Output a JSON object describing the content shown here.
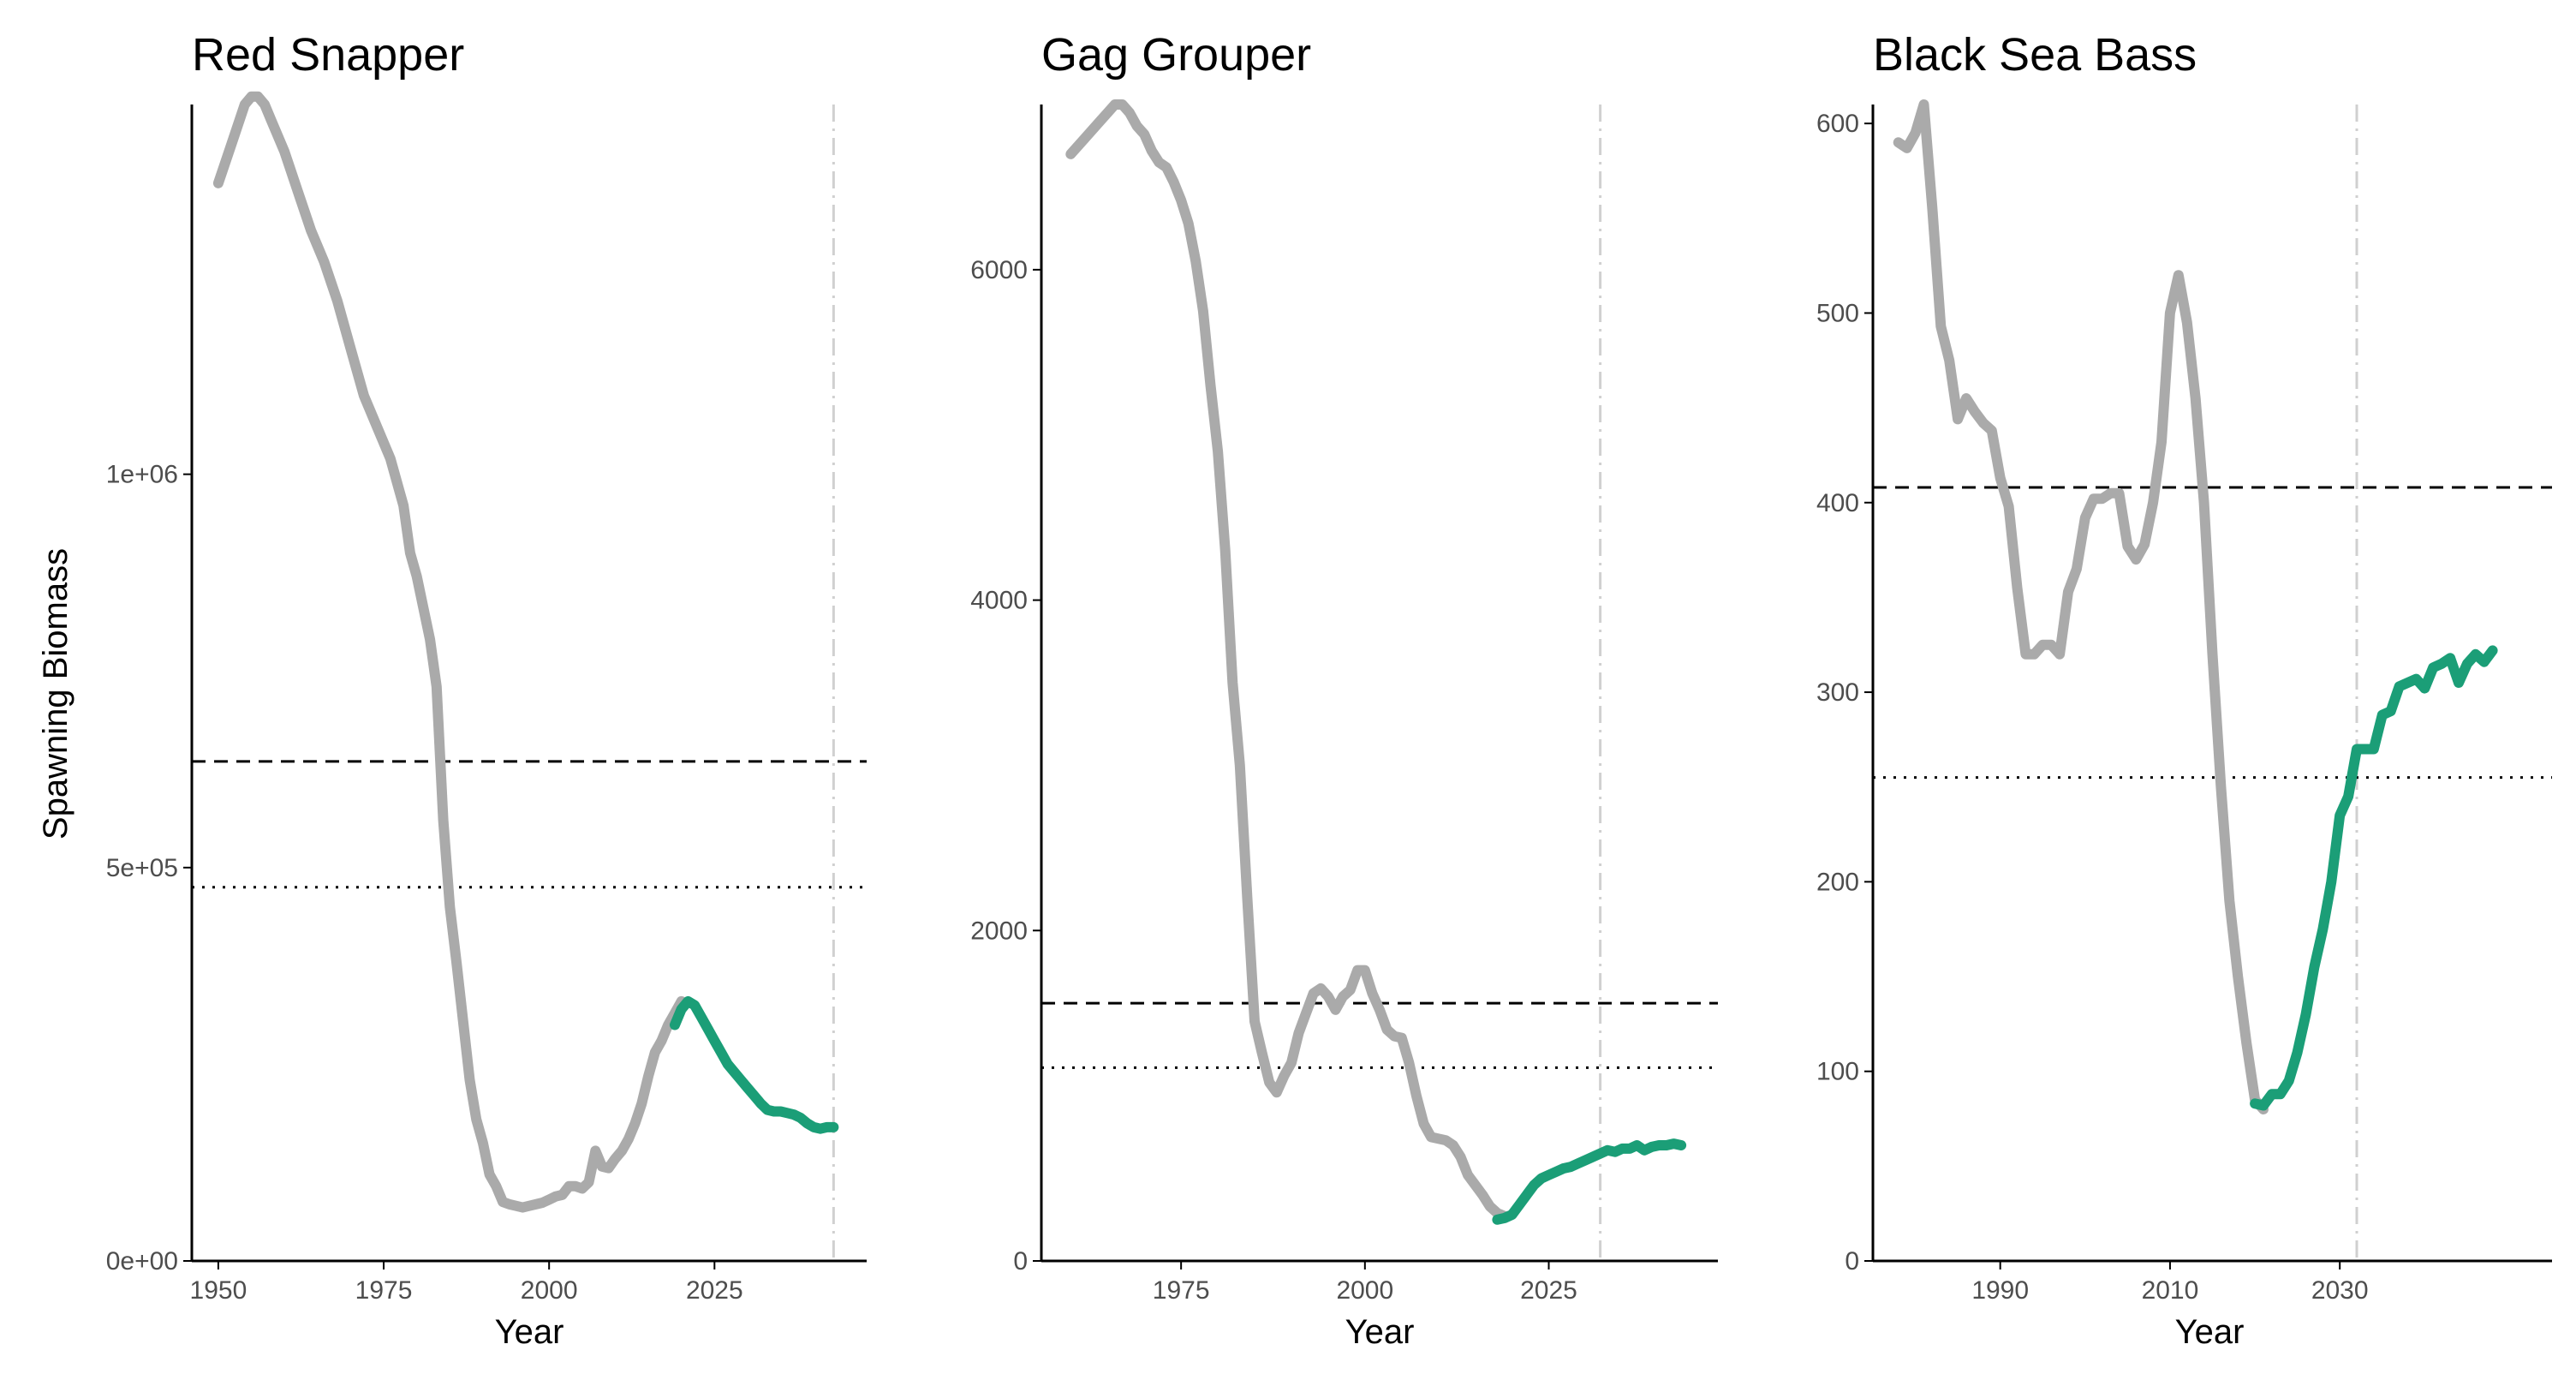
{
  "chart_data": [
    {
      "type": "line",
      "title": "Red Snapper",
      "xlabel": "Year",
      "ylabel": "Spawning Biomass",
      "xlim": [
        1946,
        2048
      ],
      "ylim": [
        0,
        1470000
      ],
      "xticks": [
        1950,
        1975,
        2000,
        2025
      ],
      "xtick_labels": [
        "1950",
        "1975",
        "2000",
        "2025"
      ],
      "yticks": [
        0,
        500000,
        1000000
      ],
      "ytick_labels": [
        "0e+00",
        "5e+05",
        "1e+06"
      ],
      "ref_lines": {
        "dashed": 635000,
        "dotted": 475000,
        "vertical": 2043
      },
      "grid": false,
      "series": [
        {
          "role": "historical",
          "color": "#aaaaaa",
          "x": [
            1950,
            1952,
            1954,
            1955,
            1956,
            1957,
            1958,
            1960,
            1962,
            1964,
            1966,
            1968,
            1970,
            1972,
            1974,
            1976,
            1978,
            1979,
            1980,
            1981,
            1982,
            1983,
            1984,
            1985,
            1986,
            1988,
            1989,
            1990,
            1991,
            1992,
            1993,
            1994,
            1995,
            1996,
            1997,
            1998,
            1999,
            2000,
            2001,
            2002,
            2003,
            2004,
            2005,
            2006,
            2007,
            2008,
            2009,
            2010,
            2011,
            2012,
            2013,
            2014,
            2015,
            2016,
            2017,
            2018,
            2019,
            2020
          ],
          "y": [
            1370000,
            1420000,
            1470000,
            1480000,
            1480000,
            1470000,
            1450000,
            1410000,
            1360000,
            1310000,
            1270000,
            1220000,
            1160000,
            1100000,
            1060000,
            1020000,
            960000,
            900000,
            870000,
            830000,
            790000,
            730000,
            560000,
            450000,
            380000,
            230000,
            180000,
            150000,
            110000,
            95000,
            75000,
            72000,
            70000,
            68000,
            70000,
            72000,
            74000,
            78000,
            82000,
            84000,
            95000,
            95000,
            92000,
            100000,
            140000,
            120000,
            118000,
            130000,
            140000,
            155000,
            175000,
            200000,
            235000,
            265000,
            280000,
            300000,
            315000,
            330000
          ]
        },
        {
          "role": "projection",
          "color": "#1b9e77",
          "x": [
            2019,
            2020,
            2021,
            2022,
            2023,
            2024,
            2025,
            2026,
            2027,
            2028,
            2029,
            2030,
            2031,
            2032,
            2033,
            2034,
            2035,
            2036,
            2037,
            2038,
            2039,
            2040,
            2041,
            2042,
            2043
          ],
          "y": [
            300000,
            320000,
            330000,
            325000,
            310000,
            295000,
            280000,
            265000,
            250000,
            240000,
            230000,
            220000,
            210000,
            200000,
            192000,
            190000,
            190000,
            188000,
            186000,
            182000,
            175000,
            170000,
            168000,
            170000,
            170000
          ]
        }
      ]
    },
    {
      "type": "line",
      "title": "Gag Grouper",
      "xlabel": "Year",
      "ylabel": "",
      "xlim": [
        1956,
        2048
      ],
      "ylim": [
        0,
        7000
      ],
      "xticks": [
        1975,
        2000,
        2025
      ],
      "xtick_labels": [
        "1975",
        "2000",
        "2025"
      ],
      "yticks": [
        0,
        2000,
        4000,
        6000
      ],
      "ytick_labels": [
        "0",
        "2000",
        "4000",
        "6000"
      ],
      "ref_lines": {
        "dashed": 1560,
        "dotted": 1170,
        "vertical": 2032
      },
      "grid": false,
      "series": [
        {
          "role": "historical",
          "color": "#aaaaaa",
          "x": [
            1960,
            1962,
            1964,
            1966,
            1967,
            1968,
            1969,
            1970,
            1971,
            1972,
            1973,
            1974,
            1975,
            1976,
            1977,
            1978,
            1979,
            1980,
            1981,
            1982,
            1983,
            1984,
            1985,
            1986,
            1987,
            1988,
            1989,
            1990,
            1991,
            1992,
            1993,
            1994,
            1995,
            1996,
            1997,
            1998,
            1999,
            2000,
            2001,
            2002,
            2003,
            2004,
            2005,
            2006,
            2007,
            2008,
            2009,
            2010,
            2011,
            2012,
            2013,
            2014,
            2015,
            2016,
            2017,
            2018,
            2019
          ],
          "y": [
            6700,
            6800,
            6900,
            7000,
            7000,
            6950,
            6870,
            6820,
            6720,
            6650,
            6620,
            6530,
            6420,
            6280,
            6050,
            5750,
            5300,
            4900,
            4300,
            3500,
            3000,
            2200,
            1450,
            1260,
            1080,
            1020,
            1120,
            1200,
            1380,
            1500,
            1620,
            1650,
            1600,
            1520,
            1600,
            1640,
            1760,
            1760,
            1620,
            1520,
            1400,
            1360,
            1350,
            1200,
            1000,
            830,
            750,
            740,
            730,
            700,
            630,
            520,
            460,
            400,
            330,
            290,
            270
          ]
        },
        {
          "role": "projection",
          "color": "#1b9e77",
          "x": [
            2018,
            2019,
            2020,
            2021,
            2022,
            2023,
            2024,
            2025,
            2026,
            2027,
            2028,
            2029,
            2030,
            2031,
            2032,
            2033,
            2034,
            2035,
            2036,
            2037,
            2038,
            2039,
            2040,
            2041,
            2042,
            2043
          ],
          "y": [
            250,
            260,
            280,
            340,
            400,
            460,
            500,
            520,
            540,
            560,
            570,
            590,
            610,
            630,
            650,
            670,
            660,
            680,
            680,
            700,
            670,
            690,
            700,
            700,
            710,
            700
          ]
        }
      ]
    },
    {
      "type": "line",
      "title": "Black Sea Bass",
      "xlabel": "Year",
      "ylabel": "",
      "xlim": [
        1975,
        2055
      ],
      "ylim": [
        0,
        610
      ],
      "xticks": [
        1990,
        2010,
        2030
      ],
      "xtick_labels": [
        "1990",
        "2010",
        "2030"
      ],
      "yticks": [
        0,
        100,
        200,
        300,
        400,
        500,
        600
      ],
      "ytick_labels": [
        "0",
        "100",
        "200",
        "300",
        "400",
        "500",
        "600"
      ],
      "ref_lines": {
        "dashed": 408,
        "dotted": 255,
        "vertical": 2032
      },
      "grid": false,
      "series": [
        {
          "role": "historical",
          "color": "#aaaaaa",
          "x": [
            1978,
            1979,
            1980,
            1981,
            1982,
            1983,
            1984,
            1985,
            1986,
            1987,
            1988,
            1989,
            1990,
            1991,
            1992,
            1993,
            1994,
            1995,
            1996,
            1997,
            1998,
            1999,
            2000,
            2001,
            2002,
            2003,
            2004,
            2005,
            2006,
            2007,
            2008,
            2009,
            2010,
            2011,
            2012,
            2013,
            2014,
            2015,
            2016,
            2017,
            2018,
            2019,
            2020,
            2021
          ],
          "y": [
            590,
            587,
            595,
            610,
            555,
            493,
            475,
            444,
            455,
            448,
            442,
            438,
            413,
            398,
            355,
            320,
            320,
            325,
            325,
            320,
            353,
            365,
            392,
            402,
            402,
            405,
            405,
            377,
            370,
            378,
            400,
            432,
            500,
            520,
            495,
            455,
            400,
            320,
            250,
            190,
            150,
            115,
            85,
            80
          ]
        },
        {
          "role": "projection",
          "color": "#1b9e77",
          "x": [
            2020,
            2021,
            2022,
            2023,
            2024,
            2025,
            2026,
            2027,
            2028,
            2029,
            2030,
            2031,
            2032,
            2033,
            2034,
            2035,
            2036,
            2037,
            2038,
            2039,
            2040,
            2041,
            2042,
            2043,
            2044,
            2045,
            2046,
            2047,
            2048
          ],
          "y": [
            83,
            82,
            88,
            88,
            95,
            110,
            130,
            155,
            175,
            200,
            235,
            245,
            270,
            270,
            270,
            288,
            290,
            303,
            305,
            307,
            302,
            313,
            315,
            318,
            305,
            315,
            320,
            316,
            322
          ]
        }
      ]
    }
  ]
}
